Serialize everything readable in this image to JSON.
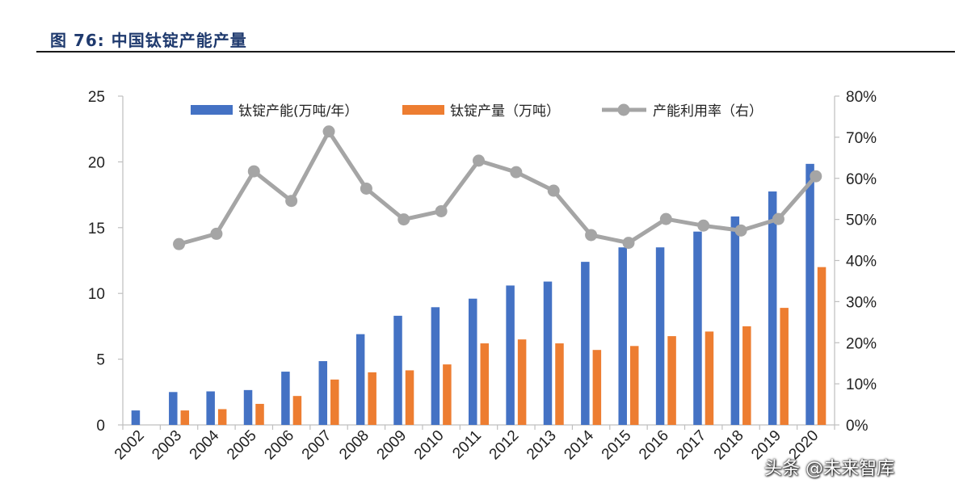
{
  "figure": {
    "title": "图 76:  中国钛锭产能产量"
  },
  "watermark": "头条 @未来智库",
  "chart_data": {
    "type": "bar+line",
    "categories": [
      "2002",
      "2003",
      "2004",
      "2005",
      "2006",
      "2007",
      "2008",
      "2009",
      "2010",
      "2011",
      "2012",
      "2013",
      "2014",
      "2015",
      "2016",
      "2017",
      "2018",
      "2019",
      "2020"
    ],
    "series": [
      {
        "name": "钛锭产能(万吨/年）",
        "type": "bar",
        "axis": "left",
        "color": "#4472c4",
        "values": [
          1.1,
          2.5,
          2.55,
          2.65,
          4.05,
          4.85,
          6.9,
          8.3,
          8.95,
          9.6,
          10.6,
          10.9,
          12.4,
          13.5,
          13.5,
          14.7,
          15.85,
          17.75,
          19.85
        ]
      },
      {
        "name": "钛锭产量（万吨）",
        "type": "bar",
        "axis": "left",
        "color": "#ed7d31",
        "values": [
          null,
          1.1,
          1.2,
          1.6,
          2.2,
          3.45,
          4.0,
          4.15,
          4.6,
          6.2,
          6.5,
          6.2,
          5.7,
          6.0,
          6.75,
          7.1,
          7.5,
          8.9,
          12.0
        ]
      },
      {
        "name": "产能利用率（右）",
        "type": "line",
        "axis": "right",
        "color": "#a5a5a5",
        "values": [
          null,
          44,
          46.5,
          61.7,
          54.5,
          71.4,
          57.5,
          50,
          52,
          64.3,
          61.5,
          57,
          46.2,
          44.3,
          50.1,
          48.5,
          47.3,
          50.1,
          60.5
        ]
      }
    ],
    "y_left": {
      "min": 0,
      "max": 25,
      "ticks": [
        "0",
        "5",
        "10",
        "15",
        "20",
        "25"
      ]
    },
    "y_right": {
      "min": 0,
      "max": 80,
      "ticks": [
        "0%",
        "10%",
        "20%",
        "30%",
        "40%",
        "50%",
        "60%",
        "70%",
        "80%"
      ]
    },
    "legend": {
      "position": "top"
    }
  }
}
